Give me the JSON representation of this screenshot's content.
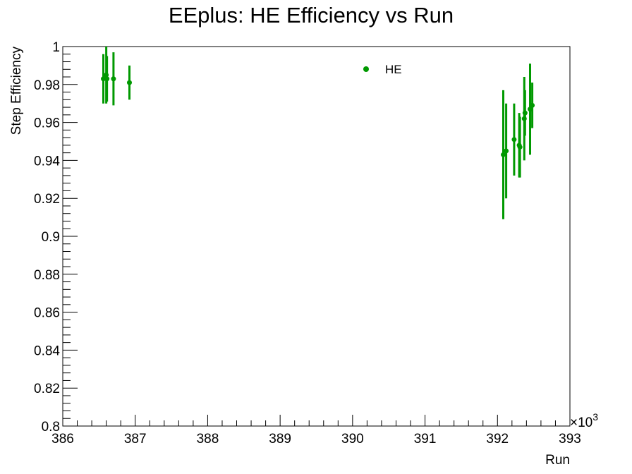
{
  "chart_data": {
    "type": "scatter",
    "title": "EEplus: HE Efficiency vs Run",
    "xlabel": "Run",
    "ylabel": "Step Efficiency",
    "x_multiplier_label": "×10",
    "x_multiplier_exponent": "3",
    "xlim": [
      386,
      393
    ],
    "ylim": [
      0.8,
      1.0
    ],
    "x_tick_labels": [
      "386",
      "387",
      "388",
      "389",
      "390",
      "391",
      "392",
      "393"
    ],
    "y_tick_labels": [
      "0.8",
      "0.82",
      "0.84",
      "0.86",
      "0.88",
      "0.9",
      "0.92",
      "0.94",
      "0.96",
      "0.98",
      "1"
    ],
    "grid": false,
    "legend_position": "top-center",
    "series": [
      {
        "name": "HE",
        "color": "#009900",
        "marker": "circle",
        "points": [
          {
            "x": 386.56,
            "y": 0.983,
            "err": 0.013
          },
          {
            "x": 386.6,
            "y": 0.985,
            "err": 0.015
          },
          {
            "x": 386.61,
            "y": 0.983,
            "err": 0.012
          },
          {
            "x": 386.7,
            "y": 0.983,
            "err": 0.014
          },
          {
            "x": 386.92,
            "y": 0.981,
            "err": 0.009
          },
          {
            "x": 392.08,
            "y": 0.943,
            "err": 0.034
          },
          {
            "x": 392.12,
            "y": 0.945,
            "err": 0.025
          },
          {
            "x": 392.23,
            "y": 0.951,
            "err": 0.019
          },
          {
            "x": 392.3,
            "y": 0.948,
            "err": 0.017
          },
          {
            "x": 392.31,
            "y": 0.947,
            "err": 0.016
          },
          {
            "x": 392.37,
            "y": 0.962,
            "err": 0.022
          },
          {
            "x": 392.38,
            "y": 0.965,
            "err": 0.012
          },
          {
            "x": 392.45,
            "y": 0.967,
            "err": 0.024
          },
          {
            "x": 392.48,
            "y": 0.969,
            "err": 0.012
          }
        ]
      }
    ]
  }
}
